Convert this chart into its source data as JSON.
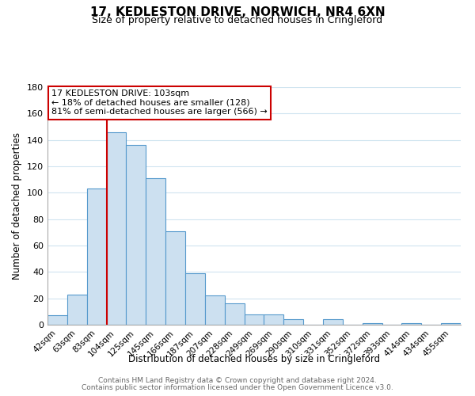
{
  "title": "17, KEDLESTON DRIVE, NORWICH, NR4 6XN",
  "subtitle": "Size of property relative to detached houses in Cringleford",
  "xlabel": "Distribution of detached houses by size in Cringleford",
  "ylabel": "Number of detached properties",
  "bar_categories": [
    "42sqm",
    "63sqm",
    "83sqm",
    "104sqm",
    "125sqm",
    "145sqm",
    "166sqm",
    "187sqm",
    "207sqm",
    "228sqm",
    "249sqm",
    "269sqm",
    "290sqm",
    "310sqm",
    "331sqm",
    "352sqm",
    "372sqm",
    "393sqm",
    "414sqm",
    "434sqm",
    "455sqm"
  ],
  "bar_values": [
    7,
    23,
    103,
    146,
    136,
    111,
    71,
    39,
    22,
    16,
    8,
    8,
    4,
    0,
    4,
    0,
    1,
    0,
    1,
    0,
    1
  ],
  "bar_color": "#cce0f0",
  "bar_edge_color": "#5599cc",
  "ylim": [
    0,
    180
  ],
  "yticks": [
    0,
    20,
    40,
    60,
    80,
    100,
    120,
    140,
    160,
    180
  ],
  "property_line_index": 3,
  "property_line_color": "#cc0000",
  "annotation_title": "17 KEDLESTON DRIVE: 103sqm",
  "annotation_line1": "← 18% of detached houses are smaller (128)",
  "annotation_line2": "81% of semi-detached houses are larger (566) →",
  "annotation_box_color": "#ffffff",
  "annotation_box_edge_color": "#cc0000",
  "footer_line1": "Contains HM Land Registry data © Crown copyright and database right 2024.",
  "footer_line2": "Contains public sector information licensed under the Open Government Licence v3.0.",
  "background_color": "#ffffff",
  "grid_color": "#d0e4f0"
}
